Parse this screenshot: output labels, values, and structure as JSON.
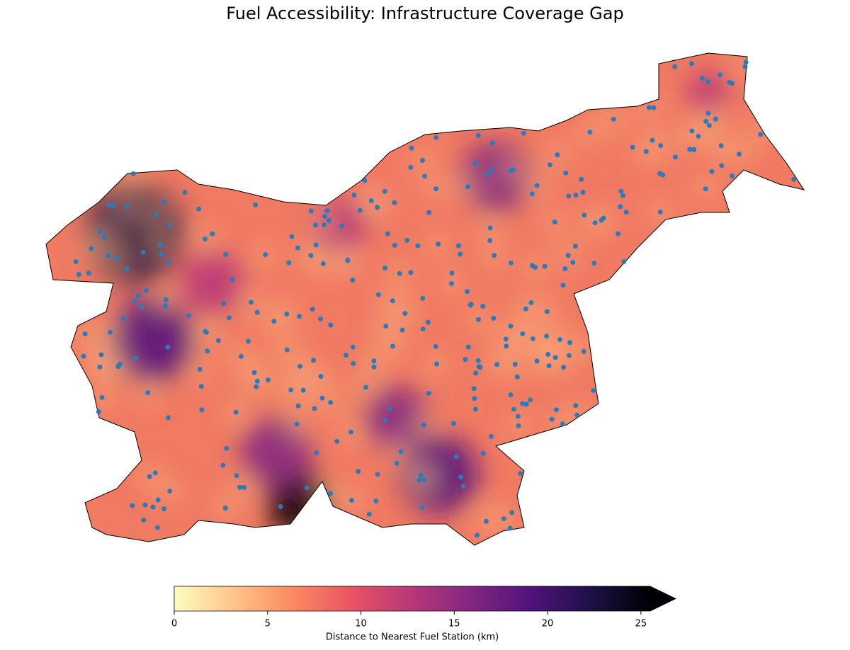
{
  "map": {
    "title": "Fuel Accessibility: Infrastructure Coverage Gap",
    "colorbar": {
      "label": "Distance to Nearest Fuel Station (km)",
      "lim": [
        0,
        25.5
      ],
      "ticks": [
        0,
        5,
        10,
        15,
        20,
        25
      ],
      "colormap": "magma_r",
      "extend": "max"
    }
  }
}
